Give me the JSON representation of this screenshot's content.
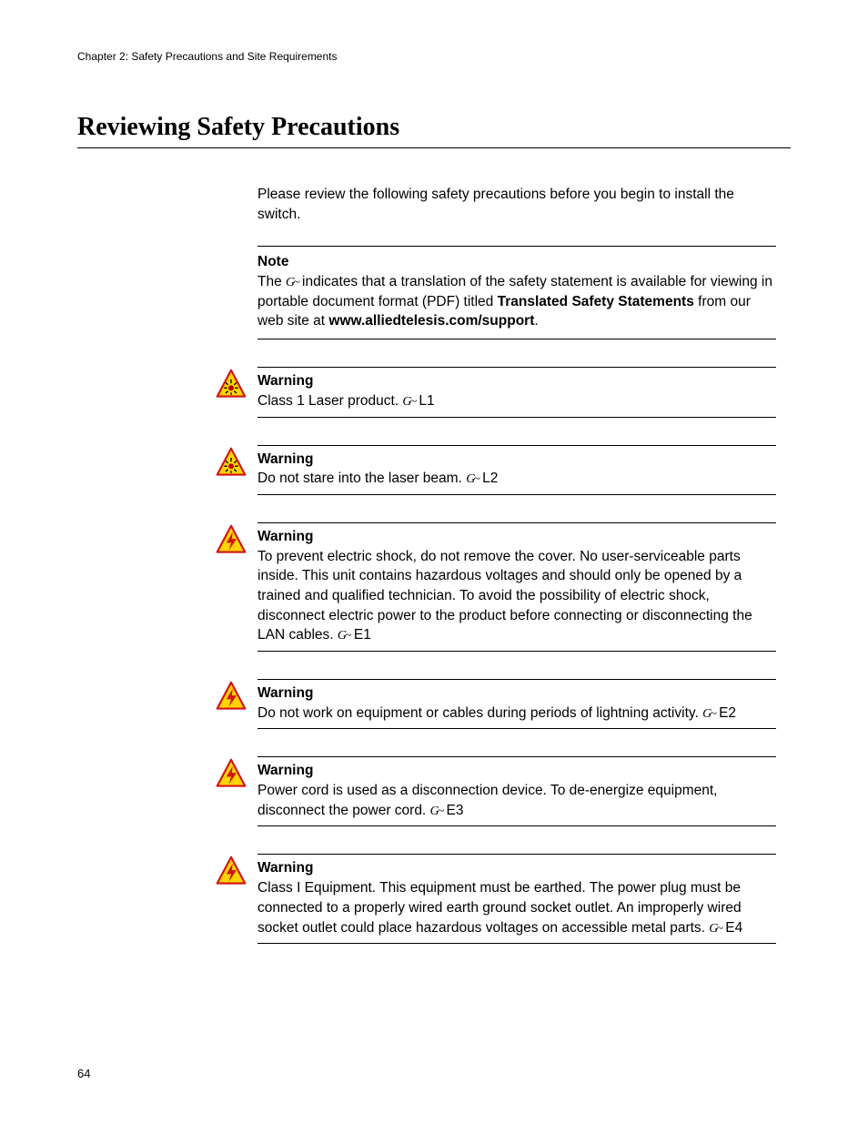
{
  "chapter_header": "Chapter 2: Safety Precautions and Site Requirements",
  "section_title": "Reviewing Safety Precautions",
  "intro_text": "Please review the following safety precautions before you begin to install the switch.",
  "ref_symbol": "G~",
  "note": {
    "title": "Note",
    "body_pre": "The ",
    "body_mid": " indicates that a translation of the safety statement is available for viewing in portable document format (PDF) titled ",
    "bold1": "Translated Safety Statements",
    "body_post1": " from our web site at ",
    "bold2": "www.alliedtelesis.com/support",
    "body_end": "."
  },
  "warnings": [
    {
      "icon": "laser",
      "title": "Warning",
      "body": "Class 1 Laser product. ",
      "code": " L1"
    },
    {
      "icon": "laser",
      "title": "Warning",
      "body": "Do not stare into the laser beam. ",
      "code": " L2"
    },
    {
      "icon": "shock",
      "title": "Warning",
      "body": "To prevent electric shock, do not remove the cover. No user-serviceable parts inside. This unit contains hazardous voltages and should only be opened by a trained and qualified technician. To avoid the possibility of electric shock, disconnect electric power to the product before connecting or disconnecting the LAN cables. ",
      "code": " E1"
    },
    {
      "icon": "shock",
      "title": "Warning",
      "body": "Do not work on equipment or cables during periods of lightning activity. ",
      "code": " E2"
    },
    {
      "icon": "shock",
      "title": "Warning",
      "body": "Power cord is used as a disconnection device. To de-energize equipment, disconnect the power cord. ",
      "code": " E3"
    },
    {
      "icon": "shock",
      "title": "Warning",
      "body": "Class I Equipment. This equipment must be earthed. The power plug must be connected to a properly wired earth ground socket outlet. An improperly wired socket outlet could place hazardous voltages on accessible metal parts. ",
      "code": " E4"
    }
  ],
  "page_number": "64",
  "colors": {
    "triangle_fill": "#ffd400",
    "triangle_stroke": "#d11313",
    "laser_core": "#c00000",
    "bolt": "#d11313",
    "text": "#000000",
    "bg": "#ffffff"
  }
}
